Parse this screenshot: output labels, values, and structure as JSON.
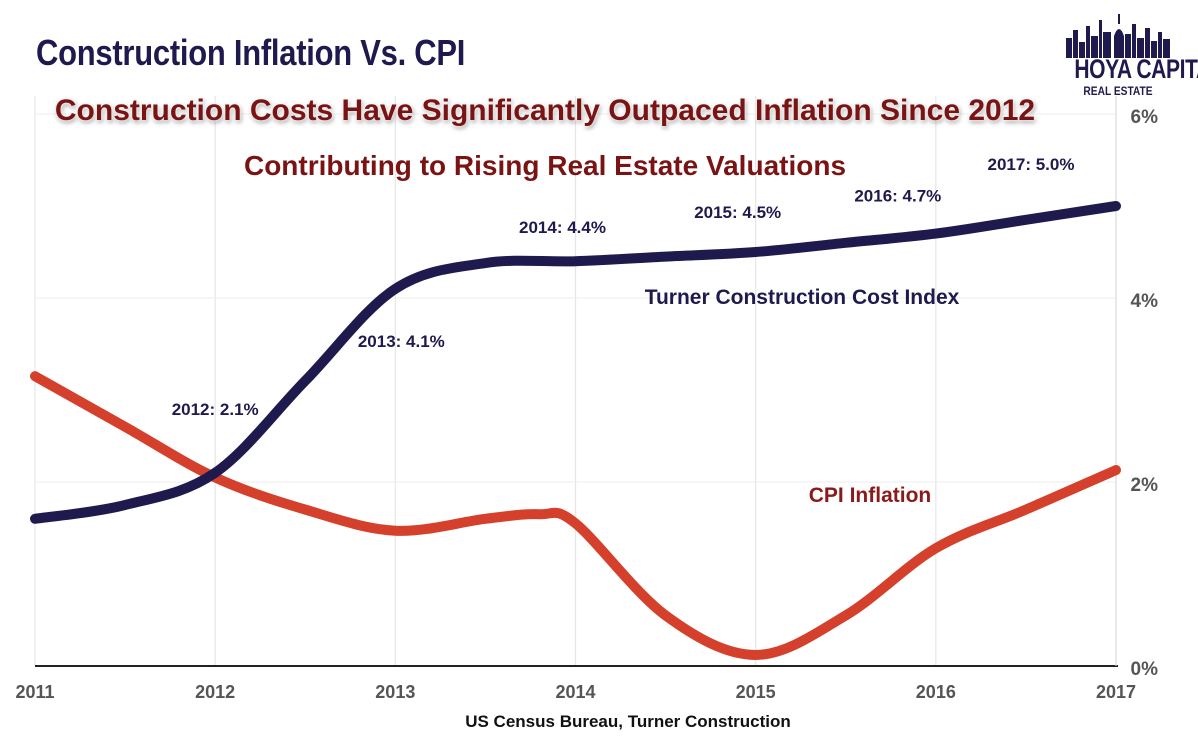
{
  "header": {
    "title": "Construction Inflation Vs. CPI",
    "subtitle_1": "Construction Costs Have Significantly Outpaced Inflation Since 2012",
    "subtitle_2": "Contributing to Rising Real Estate Valuations"
  },
  "logo": {
    "name": "HOYA CAPITAL",
    "tagline": "REAL ESTATE",
    "icon": "city-skyline-icon"
  },
  "footer": {
    "source": "US Census Bureau, Turner Construction"
  },
  "colors": {
    "tcci": "#1f1a4e",
    "cpi": "#d4402b",
    "annotation": "#1f1a4e",
    "cpi_label": "#8b1a1a",
    "grid": "#e6e6e6"
  },
  "chart_data": {
    "type": "line",
    "x_ticks": [
      "2011",
      "2012",
      "2013",
      "2014",
      "2015",
      "2016",
      "2017"
    ],
    "y_ticks": [
      "0%",
      "2%",
      "4%",
      "6%"
    ],
    "ylim": [
      0,
      6
    ],
    "y_axis_side": "right",
    "grid": true,
    "series": [
      {
        "name": "Turner Construction Cost Index",
        "x": [
          2011,
          2011.5,
          2012,
          2012.5,
          2013,
          2013.5,
          2014,
          2014.5,
          2015,
          2015.5,
          2016,
          2016.5,
          2017
        ],
        "values": [
          1.6,
          1.75,
          2.1,
          3.1,
          4.1,
          4.38,
          4.4,
          4.45,
          4.5,
          4.6,
          4.7,
          4.85,
          5.0
        ]
      },
      {
        "name": "CPI Inflation",
        "x": [
          2011,
          2011.5,
          2012,
          2012.5,
          2013,
          2013.5,
          2013.8,
          2014,
          2014.5,
          2015,
          2015.5,
          2016,
          2016.5,
          2017
        ],
        "values": [
          3.15,
          2.6,
          2.05,
          1.7,
          1.47,
          1.6,
          1.65,
          1.55,
          0.55,
          0.12,
          0.55,
          1.28,
          1.7,
          2.13
        ]
      }
    ],
    "annotations": [
      {
        "text": "2012: 2.1%",
        "x": 2012,
        "y": 2.1
      },
      {
        "text": "2013: 4.1%",
        "x": 2013,
        "y": 4.1
      },
      {
        "text": "2014: 4.4%",
        "x": 2014,
        "y": 4.4
      },
      {
        "text": "2015: 4.5%",
        "x": 2015,
        "y": 4.5
      },
      {
        "text": "2016: 4.7%",
        "x": 2016,
        "y": 4.7
      },
      {
        "text": "2017: 5.0%",
        "x": 2017,
        "y": 5.0
      }
    ]
  }
}
